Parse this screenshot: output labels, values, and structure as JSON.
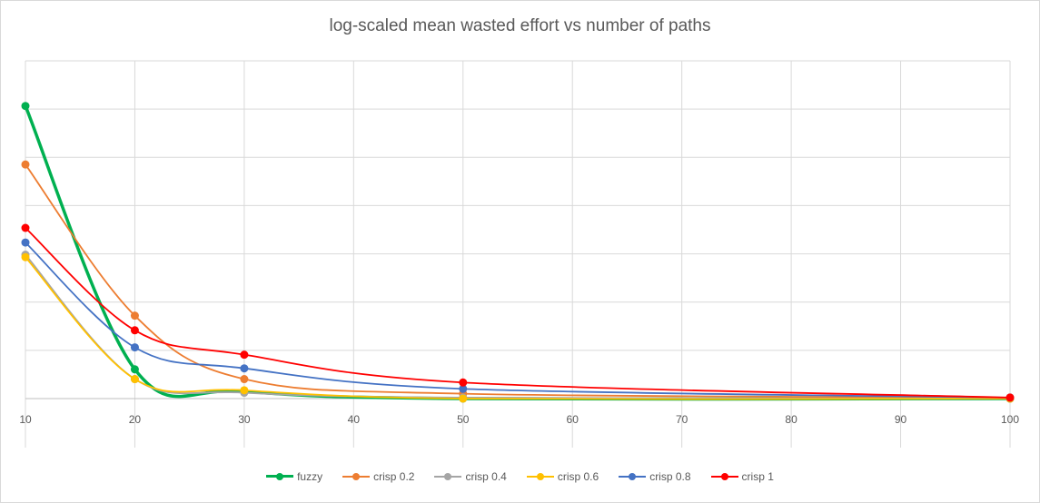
{
  "chart_data": {
    "type": "line",
    "title": "log-scaled mean wasted effort vs number of paths",
    "xlabel": "",
    "ylabel": "",
    "x": [
      10,
      20,
      30,
      50,
      100
    ],
    "xlim": [
      10,
      100
    ],
    "xticks": [
      10,
      20,
      30,
      40,
      50,
      60,
      70,
      80,
      90,
      100
    ],
    "ylim": [
      0,
      7
    ],
    "y_tick_labels_shown": false,
    "grid": true,
    "legend_position": "bottom",
    "series": [
      {
        "name": "fuzzy",
        "color": "#00b050",
        "values": [
          6.0,
          0.6,
          0.15,
          0.0,
          0.0
        ]
      },
      {
        "name": "crisp 0.2",
        "color": "#ed7d31",
        "values": [
          4.8,
          1.7,
          0.4,
          0.1,
          0.02
        ]
      },
      {
        "name": "crisp 0.4",
        "color": "#a5a5a5",
        "values": [
          2.95,
          0.4,
          0.12,
          0.02,
          0.0
        ]
      },
      {
        "name": "crisp 0.6",
        "color": "#ffc000",
        "values": [
          2.9,
          0.4,
          0.17,
          0.0,
          0.0
        ]
      },
      {
        "name": "crisp 0.8",
        "color": "#4472c4",
        "values": [
          3.2,
          1.05,
          0.62,
          0.2,
          0.02
        ]
      },
      {
        "name": "crisp 1",
        "color": "#ff0000",
        "values": [
          3.5,
          1.4,
          0.9,
          0.33,
          0.02
        ]
      }
    ]
  }
}
